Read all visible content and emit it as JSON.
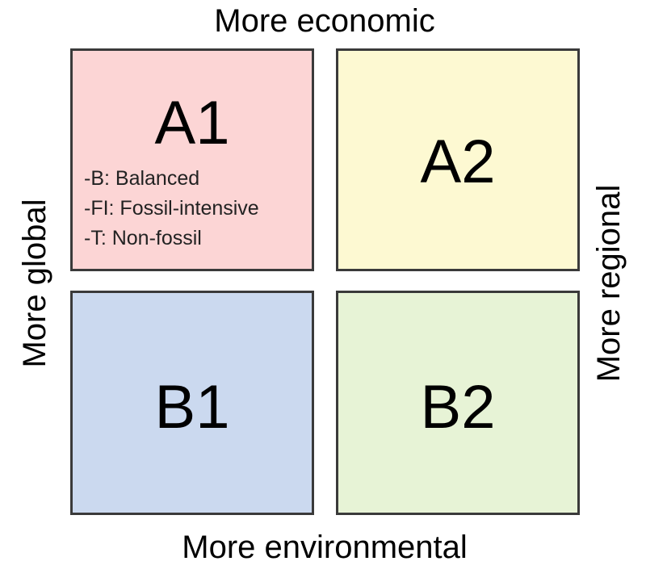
{
  "axes": {
    "top": "More economic",
    "bottom": "More environmental",
    "left": "More global",
    "right": "More regional"
  },
  "quadrants": [
    {
      "label": "A1",
      "color": "#fcd5d5",
      "notes": [
        "-B: Balanced",
        "-FI: Fossil-intensive",
        "-T: Non-fossil"
      ]
    },
    {
      "label": "A2",
      "color": "#fdf9d2"
    },
    {
      "label": "B1",
      "color": "#cbd9ef"
    },
    {
      "label": "B2",
      "color": "#e7f3d6"
    }
  ]
}
